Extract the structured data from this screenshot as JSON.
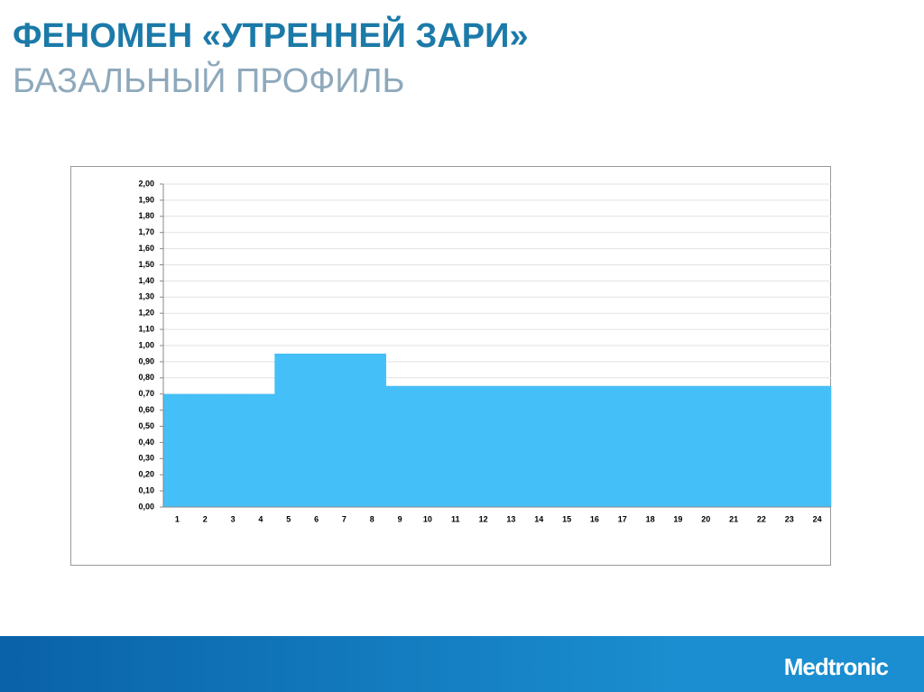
{
  "title": "ФЕНОМЕН «УТРЕННЕЙ ЗАРИ»",
  "subtitle": "БАЗАЛЬНЫЙ ПРОФИЛЬ",
  "logo": "Medtronic",
  "chart_data": {
    "type": "bar",
    "categories": [
      "1",
      "2",
      "3",
      "4",
      "5",
      "6",
      "7",
      "8",
      "9",
      "10",
      "11",
      "12",
      "13",
      "14",
      "15",
      "16",
      "17",
      "18",
      "19",
      "20",
      "21",
      "22",
      "23",
      "24"
    ],
    "values": [
      0.7,
      0.7,
      0.7,
      0.7,
      0.95,
      0.95,
      0.95,
      0.95,
      0.75,
      0.75,
      0.75,
      0.75,
      0.75,
      0.75,
      0.75,
      0.75,
      0.75,
      0.75,
      0.75,
      0.75,
      0.75,
      0.75,
      0.75,
      0.75
    ],
    "color": "#45bff8",
    "ylim": [
      0,
      2
    ],
    "yticks": [
      {
        "value": 0,
        "label": "0,00"
      },
      {
        "value": 0.1,
        "label": "0,10"
      },
      {
        "value": 0.2,
        "label": "0,20"
      },
      {
        "value": 0.3,
        "label": "0,30"
      },
      {
        "value": 0.4,
        "label": "0,40"
      },
      {
        "value": 0.5,
        "label": "0,50"
      },
      {
        "value": 0.6,
        "label": "0,60"
      },
      {
        "value": 0.7,
        "label": "0,70"
      },
      {
        "value": 0.8,
        "label": "0,80"
      },
      {
        "value": 0.9,
        "label": "0,90"
      },
      {
        "value": 1.0,
        "label": "1,00"
      },
      {
        "value": 1.1,
        "label": "1,10"
      },
      {
        "value": 1.2,
        "label": "1,20"
      },
      {
        "value": 1.3,
        "label": "1,30"
      },
      {
        "value": 1.4,
        "label": "1,40"
      },
      {
        "value": 1.5,
        "label": "1,50"
      },
      {
        "value": 1.6,
        "label": "1,60"
      },
      {
        "value": 1.7,
        "label": "1,70"
      },
      {
        "value": 1.8,
        "label": "1,80"
      },
      {
        "value": 1.9,
        "label": "1,90"
      },
      {
        "value": 2.0,
        "label": "2,00"
      }
    ],
    "grid": true
  }
}
